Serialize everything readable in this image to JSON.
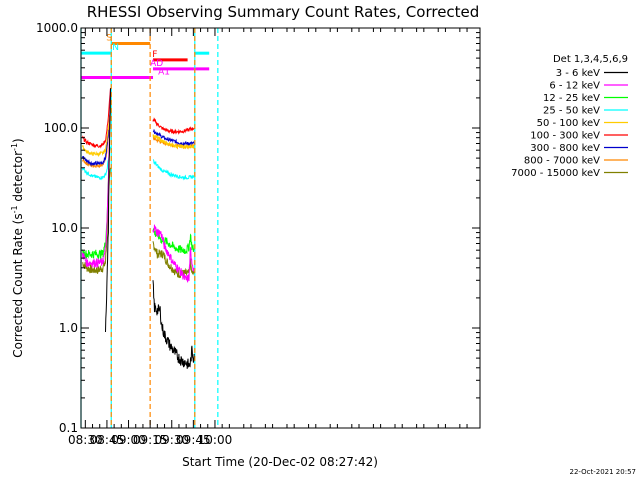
{
  "chart_data": {
    "type": "line",
    "title": "RHESSI Observing Summary Count Rates, Corrected",
    "xlabel": "Start Time (20-Dec-02 08:27:42)",
    "ylabel_main": "Corrected Count Rate (s",
    "ylabel_sup": "-1",
    "ylabel_mid": " detector",
    "ylabel_end": ")",
    "x_range_min": [
      507,
      784
    ],
    "y_range": [
      0.1,
      1000
    ],
    "y_scale": "log",
    "x_ticks": [
      {
        "label": "08:30",
        "min": 510
      },
      {
        "label": "08:45",
        "min": 525
      },
      {
        "label": "09:00",
        "min": 540
      },
      {
        "label": "09:15",
        "min": 555
      },
      {
        "label": "09:30",
        "min": 570
      },
      {
        "label": "09:45",
        "min": 585
      },
      {
        "label": "10:00",
        "min": 600
      }
    ],
    "y_ticks": [
      {
        "label": "1000.0",
        "value": 1000
      },
      {
        "label": "100.0",
        "value": 100
      },
      {
        "label": "10.0",
        "value": 10
      },
      {
        "label": "1.0",
        "value": 1
      },
      {
        "label": "0.1",
        "value": 0.1
      }
    ],
    "legend_title": "Det 1,3,4,5,6,9",
    "series": [
      {
        "name": "3 - 6 keV",
        "color": "#000000",
        "seg1_x": [
          524.0,
          524.5,
          525.0,
          525.5,
          526.0,
          526.5,
          527.5
        ],
        "seg1_y": [
          1.0,
          1.6,
          3.0,
          5.0,
          10,
          40,
          250
        ],
        "seg2_x": [
          557.0,
          557.5,
          558.0,
          560.0,
          562.0,
          563.0,
          565.0,
          568.0,
          571.0,
          574.0,
          577.0,
          580.0,
          582.0,
          583.0,
          584.0,
          585.0,
          585.5
        ],
        "seg2_y": [
          2.8,
          2.0,
          1.6,
          1.5,
          1.5,
          1.05,
          0.85,
          0.7,
          0.6,
          0.52,
          0.47,
          0.45,
          0.42,
          0.45,
          0.6,
          0.5,
          0.55
        ]
      },
      {
        "name": "6 - 12 keV",
        "color": "#ff00ff",
        "seg1_x": [
          508.0,
          511.0,
          515.0,
          519.0,
          522.0,
          524.0,
          525.0,
          526.0,
          527.5
        ],
        "seg1_y": [
          5.5,
          4.5,
          4.5,
          4.5,
          4.5,
          6.0,
          10,
          30,
          250
        ],
        "seg2_x": [
          557.0,
          558.0,
          560.0,
          562.0,
          563.0,
          565.0,
          568.0,
          571.0,
          574.0,
          577.0,
          580.0,
          582.0,
          583.0,
          584.0,
          585.5
        ],
        "seg2_y": [
          10,
          10,
          9,
          9,
          8.5,
          6.5,
          5.5,
          4.5,
          4.0,
          3.5,
          3.0,
          3.2,
          6.5,
          4.0,
          4.0
        ]
      },
      {
        "name": "12 - 25 keV",
        "color": "#00ff00",
        "seg1_x": [
          508.0,
          511.0,
          515.0,
          519.0,
          522.0,
          524.0,
          525.0,
          526.0,
          527.5
        ],
        "seg1_y": [
          5.5,
          5.5,
          5.5,
          5.5,
          5.5,
          7.0,
          12,
          30,
          230
        ],
        "seg2_x": [
          557.0,
          558.0,
          560.0,
          562.0,
          563.0,
          565.0,
          568.0,
          571.0,
          574.0,
          577.0,
          580.0,
          582.0,
          583.0,
          584.0,
          585.5
        ],
        "seg2_y": [
          10,
          9,
          8.5,
          8,
          7.5,
          7.5,
          7,
          6.5,
          6.2,
          6.0,
          6.0,
          6.5,
          8.5,
          6.5,
          6.0
        ]
      },
      {
        "name": "25 - 50 keV",
        "color": "#00ffff",
        "seg1_x": [
          508.0,
          511.0,
          515.0,
          519.0,
          522.0,
          524.0,
          525.0,
          526.0,
          527.5
        ],
        "seg1_y": [
          40,
          36,
          33,
          32,
          32,
          34,
          38,
          48,
          65
        ],
        "seg2_x": [
          557.0,
          558.0,
          560.0,
          563.0,
          566.0,
          570.0,
          574.0,
          578.0,
          582.0,
          585.5
        ],
        "seg2_y": [
          48,
          45,
          42,
          38,
          36,
          34,
          33,
          32,
          32,
          33
        ]
      },
      {
        "name": "50 - 100 keV",
        "color": "#ffcc00",
        "seg1_x": [
          508.0,
          511.0,
          515.0,
          519.0,
          522.0,
          524.0,
          525.0,
          526.0,
          527.5
        ],
        "seg1_y": [
          65,
          58,
          55,
          55,
          56,
          60,
          75,
          100,
          160
        ],
        "seg2_x": [
          557.0,
          558.0,
          560.0,
          563.0,
          566.0,
          570.0,
          574.0,
          578.0,
          582.0,
          585.5
        ],
        "seg2_y": [
          85,
          82,
          80,
          75,
          70,
          68,
          66,
          65,
          65,
          65
        ]
      },
      {
        "name": "100 - 300 keV",
        "color": "#ff0000",
        "seg1_x": [
          508.0,
          511.0,
          515.0,
          519.0,
          522.0,
          524.0,
          525.0,
          526.0,
          527.5
        ],
        "seg1_y": [
          80,
          72,
          68,
          66,
          68,
          75,
          95,
          130,
          250
        ],
        "seg2_x": [
          557.0,
          558.0,
          560.0,
          563.0,
          566.0,
          570.0,
          574.0,
          578.0,
          582.0,
          585.5
        ],
        "seg2_y": [
          120,
          118,
          110,
          100,
          95,
          92,
          92,
          93,
          96,
          100
        ]
      },
      {
        "name": "300 - 800 keV",
        "color": "#0000cc",
        "seg1_x": [
          508.0,
          511.0,
          515.0,
          519.0,
          522.0,
          524.0,
          525.0,
          526.0,
          527.5
        ],
        "seg1_y": [
          52,
          47,
          44,
          44,
          45,
          50,
          65,
          90,
          160
        ],
        "seg2_x": [
          557.0,
          558.0,
          560.0,
          563.0,
          566.0,
          570.0,
          574.0,
          578.0,
          582.0,
          585.5
        ],
        "seg2_y": [
          95,
          92,
          88,
          82,
          78,
          75,
          72,
          70,
          70,
          70
        ]
      },
      {
        "name": "800 - 7000 keV",
        "color": "#ff8800",
        "seg1_x": [
          508.0,
          511.0,
          515.0,
          519.0,
          522.0,
          524.0,
          525.0,
          526.0,
          527.5
        ],
        "seg1_y": [
          48,
          44,
          42,
          42,
          43,
          48,
          60,
          85,
          140
        ],
        "seg2_x": [
          557.0,
          558.0,
          560.0,
          563.0,
          566.0,
          570.0,
          574.0,
          578.0,
          582.0,
          585.5
        ],
        "seg2_y": [
          80,
          78,
          75,
          72,
          70,
          68,
          66,
          66,
          66,
          66
        ]
      },
      {
        "name": "7000 - 15000 keV",
        "color": "#808000",
        "seg1_x": [
          508.0,
          511.0,
          515.0,
          519.0,
          522.0,
          524.0,
          525.0,
          526.0,
          527.5
        ],
        "seg1_y": [
          4.5,
          4.0,
          3.8,
          3.8,
          4.0,
          4.5,
          8,
          20,
          40
        ],
        "seg2_x": [
          557.0,
          558.0,
          560.0,
          562.0,
          564.0,
          567.0,
          570.0,
          574.0,
          578.0,
          582.0,
          583.0,
          584.0,
          585.5
        ],
        "seg2_y": [
          7,
          6.5,
          5.5,
          5.5,
          5.5,
          4.5,
          4.0,
          3.5,
          3.5,
          3.5,
          4.5,
          3.5,
          3.5
        ]
      }
    ],
    "flags": [
      {
        "label": "S",
        "color": "#ff8800",
        "start_min": 528,
        "end_min": 555,
        "level": 700,
        "label_min": 524.5
      },
      {
        "label": "N",
        "color": "#00ffff",
        "start_min": 507,
        "end_min": 528,
        "level": 560,
        "label_min": 528.7
      },
      {
        "label": "F",
        "color": "#ff0000",
        "start_min": 557,
        "end_min": 581,
        "level": 480,
        "label_min": 556.5
      },
      {
        "label": "AD",
        "color": "#ff00ff",
        "start_min": 557,
        "end_min": 596,
        "level": 390,
        "label_min": 555.0
      },
      {
        "label": "A1",
        "color": "#ff00ff",
        "start_min": 507,
        "end_min": 557,
        "level": 320,
        "label_min": 560.5
      },
      {
        "label": "",
        "color": "#00ffff",
        "start_min": 586,
        "end_min": 596,
        "level": 560,
        "label_min": 0
      }
    ],
    "vlines": [
      {
        "min": 507,
        "color": "#00ffff",
        "style": "solid"
      },
      {
        "min": 528,
        "color": "#00ffff",
        "style": "solid"
      },
      {
        "min": 528,
        "color": "#ff8800",
        "style": "dashed"
      },
      {
        "min": 555,
        "color": "#ff8800",
        "style": "dashed"
      },
      {
        "min": 586,
        "color": "#00ffff",
        "style": "solid"
      },
      {
        "min": 586,
        "color": "#ff8800",
        "style": "dashed"
      },
      {
        "min": 602,
        "color": "#00ffff",
        "style": "dashed"
      }
    ],
    "timestamp": "22-Oct-2021 20:57"
  }
}
